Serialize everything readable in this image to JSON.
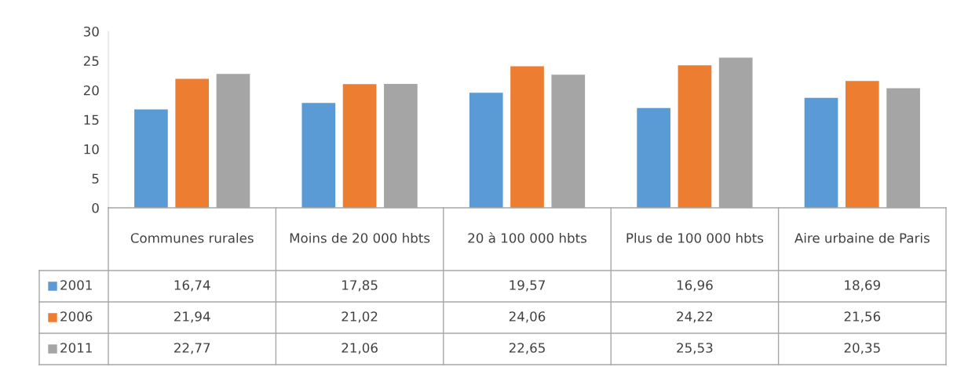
{
  "chart_data": {
    "type": "bar",
    "categories": [
      "Communes rurales",
      "Moins de 20 000 hbts",
      "20 à 100 000 hbts",
      "Plus de 100 000 hbts",
      "Aire urbaine de Paris"
    ],
    "series": [
      {
        "name": "2001",
        "color": "#5b9bd5",
        "values": [
          16.74,
          17.85,
          19.57,
          16.96,
          18.69
        ],
        "value_labels": [
          "16,74",
          "17,85",
          "19,57",
          "16,96",
          "18,69"
        ]
      },
      {
        "name": "2006",
        "color": "#ed7d31",
        "values": [
          21.94,
          21.02,
          24.06,
          24.22,
          21.56
        ],
        "value_labels": [
          "21,94",
          "21,02",
          "24,06",
          "24,22",
          "21,56"
        ]
      },
      {
        "name": "2011",
        "color": "#a5a5a5",
        "values": [
          22.77,
          21.06,
          22.65,
          25.53,
          20.35
        ],
        "value_labels": [
          "22,77",
          "21,06",
          "22,65",
          "25,53",
          "20,35"
        ]
      }
    ],
    "ylim": [
      0,
      30
    ],
    "yticks": [
      0,
      5,
      10,
      15,
      20,
      25,
      30
    ],
    "grid": false,
    "legend": "bottom left"
  }
}
